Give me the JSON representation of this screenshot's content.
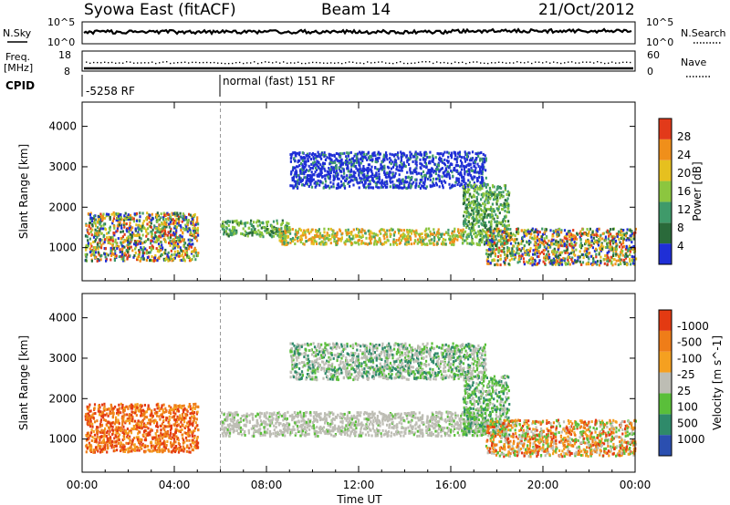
{
  "header": {
    "title": "Syowa East (fitACF)",
    "beam": "Beam 14",
    "date": "21/Oct/2012"
  },
  "noise_panel": {
    "left_label": "N.Sky",
    "right_label": "N.Search",
    "left_ticks": [
      "10^5",
      "10^0"
    ],
    "right_ticks": [
      "10^5",
      "10^0"
    ]
  },
  "freq_panel": {
    "left_label_1": "Freq.",
    "left_label_2": "[MHz]",
    "right_label": "Nave",
    "left_ticks": [
      "18",
      "8"
    ],
    "right_ticks": [
      "60",
      "0"
    ]
  },
  "cpid_panel": {
    "label": "CPID",
    "segments": [
      {
        "text": "-5258 RF",
        "start_hour": 0
      },
      {
        "text": "normal (fast) 151 RF",
        "start_hour": 6
      }
    ]
  },
  "x_axis": {
    "label": "Time UT",
    "ticks": [
      "00:00",
      "04:00",
      "08:00",
      "12:00",
      "16:00",
      "20:00",
      "00:00"
    ]
  },
  "chart_data": [
    {
      "type": "heatmap",
      "title": "",
      "xlabel": "Time UT",
      "ylabel": "Slant Range [km]",
      "x_range_hours": [
        0,
        24
      ],
      "ylim": [
        180,
        4600
      ],
      "yticks": [
        "1000",
        "2000",
        "3000",
        "4000"
      ],
      "colorbar": {
        "label": "Power [dB]",
        "ticks": [
          "4",
          "8",
          "12",
          "16",
          "20",
          "24",
          "28"
        ],
        "colors": [
          "#1f2fd6",
          "#2a6a3a",
          "#3f9a6a",
          "#8cc63f",
          "#e6c01f",
          "#f08f1a",
          "#e23a1a"
        ]
      },
      "echo_regions": [
        {
          "t_start": 0.1,
          "t_end": 5.0,
          "r_low": 700,
          "r_high": 1900,
          "dominant": "mixed"
        },
        {
          "t_start": 6.0,
          "t_end": 9.0,
          "r_low": 1300,
          "r_high": 1700,
          "dominant": "green"
        },
        {
          "t_start": 8.5,
          "t_end": 16.5,
          "r_low": 1100,
          "r_high": 1500,
          "dominant": "orange-green"
        },
        {
          "t_start": 9.0,
          "t_end": 17.5,
          "r_low": 2500,
          "r_high": 3400,
          "dominant": "blue"
        },
        {
          "t_start": 16.5,
          "t_end": 18.5,
          "r_low": 1100,
          "r_high": 2600,
          "dominant": "green"
        },
        {
          "t_start": 17.5,
          "t_end": 24.0,
          "r_low": 600,
          "r_high": 1500,
          "dominant": "mixed"
        }
      ]
    },
    {
      "type": "heatmap",
      "title": "",
      "xlabel": "Time UT",
      "ylabel": "Slant Range [km]",
      "x_range_hours": [
        0,
        24
      ],
      "ylim": [
        180,
        4600
      ],
      "yticks": [
        "1000",
        "2000",
        "3000",
        "4000"
      ],
      "colorbar": {
        "label": "Velocity [m s^-1]",
        "ticks": [
          "1000",
          "500",
          "100",
          "25",
          "-25",
          "-100",
          "-500",
          "-1000"
        ],
        "colors": [
          "#2b4fb0",
          "#2f8a6a",
          "#5abf3a",
          "#bdbdb4",
          "#f5a020",
          "#ef7d18",
          "#e33a12"
        ]
      },
      "echo_regions": [
        {
          "t_start": 0.1,
          "t_end": 5.0,
          "r_low": 700,
          "r_high": 1900,
          "dominant": "red-orange"
        },
        {
          "t_start": 6.0,
          "t_end": 17.5,
          "r_low": 1100,
          "r_high": 1700,
          "dominant": "gray"
        },
        {
          "t_start": 9.0,
          "t_end": 17.5,
          "r_low": 2500,
          "r_high": 3400,
          "dominant": "gray-green"
        },
        {
          "t_start": 16.5,
          "t_end": 18.5,
          "r_low": 1100,
          "r_high": 2600,
          "dominant": "green"
        },
        {
          "t_start": 17.5,
          "t_end": 24.0,
          "r_low": 600,
          "r_high": 1500,
          "dominant": "orange-green"
        }
      ]
    }
  ]
}
